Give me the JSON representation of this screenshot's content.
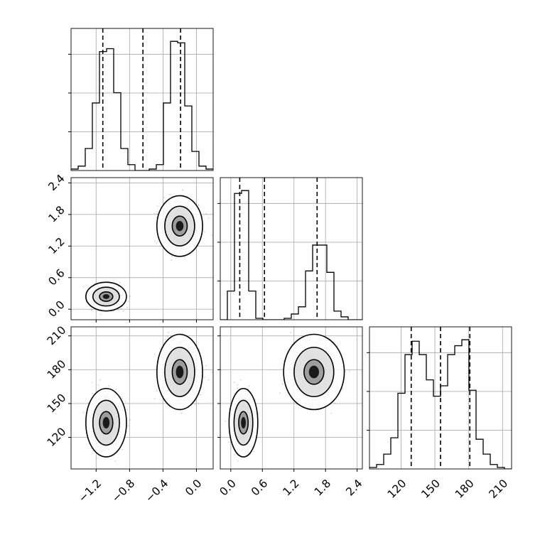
{
  "figure": {
    "type": "corner plot"
  },
  "chart_data": {
    "type": "corner",
    "grid": true,
    "parameters": [
      {
        "range": [
          -1.5,
          0.2
        ],
        "ticks": [
          -1.2,
          -0.8,
          -0.4,
          0.0
        ],
        "tick_labels": [
          "−1.2",
          "−0.8",
          "−0.4",
          "0.0"
        ]
      },
      {
        "range": [
          -0.2,
          2.5
        ],
        "ticks": [
          0.0,
          0.6,
          1.2,
          1.8,
          2.4
        ],
        "tick_labels": [
          "0.0",
          "0.6",
          "1.2",
          "1.8",
          "2.4"
        ]
      },
      {
        "range": [
          92,
          218
        ],
        "ticks": [
          120,
          150,
          180,
          210
        ],
        "tick_labels": [
          "120",
          "150",
          "180",
          "210"
        ]
      }
    ],
    "diagonal_histograms": [
      {
        "parameter": 0,
        "edges": [
          -1.5,
          -1.415,
          -1.33,
          -1.245,
          -1.16,
          -1.075,
          -0.99,
          -0.905,
          -0.82,
          -0.735,
          -0.65,
          -0.565,
          -0.48,
          -0.395,
          -0.31,
          -0.225,
          -0.14,
          -0.055,
          0.03,
          0.115,
          0.2
        ],
        "counts": [
          0.01,
          0.03,
          0.15,
          0.46,
          0.81,
          0.83,
          0.53,
          0.15,
          0.04,
          0.0,
          0.0,
          0.01,
          0.04,
          0.46,
          0.88,
          0.87,
          0.44,
          0.13,
          0.03,
          0.01
        ],
        "quantiles": [
          -1.12,
          -0.64,
          -0.19
        ]
      },
      {
        "parameter": 1,
        "edges": [
          -0.2,
          -0.065,
          0.07,
          0.205,
          0.34,
          0.475,
          0.61,
          0.745,
          0.88,
          1.015,
          1.15,
          1.285,
          1.42,
          1.555,
          1.69,
          1.825,
          1.96,
          2.095,
          2.23,
          2.365,
          2.5
        ],
        "counts": [
          0.0,
          0.2,
          0.88,
          0.9,
          0.2,
          0.01,
          0.0,
          0.0,
          0.0,
          0.01,
          0.04,
          0.09,
          0.34,
          0.52,
          0.52,
          0.33,
          0.06,
          0.02,
          0.0,
          0.0
        ],
        "quantiles": [
          0.17,
          0.64,
          1.64
        ]
      },
      {
        "parameter": 2,
        "edges": [
          92,
          98.3,
          104.6,
          110.9,
          117.2,
          123.5,
          129.8,
          136.1,
          142.4,
          148.7,
          155,
          161.3,
          167.6,
          173.9,
          180.2,
          186.5,
          192.8,
          199.1,
          205.4,
          211.7,
          218
        ],
        "counts": [
          0.01,
          0.03,
          0.1,
          0.21,
          0.51,
          0.77,
          0.86,
          0.77,
          0.6,
          0.49,
          0.56,
          0.77,
          0.83,
          0.87,
          0.53,
          0.2,
          0.1,
          0.03,
          0.01,
          0.0
        ],
        "quantiles": [
          129,
          155,
          181
        ]
      }
    ],
    "clusters": [
      {
        "weight": 0.5,
        "mean": [
          -1.08,
          0.24,
          133
        ],
        "sd": [
          0.08,
          0.09,
          10
        ]
      },
      {
        "weight": 0.5,
        "mean": [
          -0.2,
          1.58,
          178
        ],
        "sd": [
          0.09,
          0.19,
          11
        ]
      }
    ],
    "point_samples": 4500,
    "contour_levels": [
      0.39,
      0.86,
      0.99
    ]
  }
}
